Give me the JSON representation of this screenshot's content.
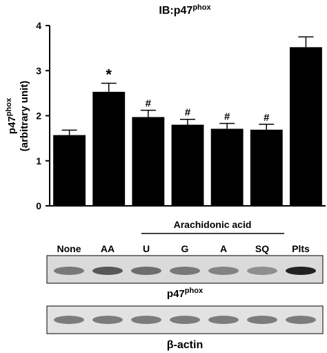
{
  "chart_data": {
    "type": "bar",
    "title": "IB:p47",
    "title_superscript": "phox",
    "y_label": "p47",
    "y_label_superscript": "phox",
    "y_label_unit": "(arbitrary unit)",
    "categories": [
      "None",
      "AA",
      "U",
      "G",
      "A",
      "SQ",
      "Plts"
    ],
    "values": [
      1.57,
      2.53,
      1.97,
      1.8,
      1.71,
      1.69,
      3.52
    ],
    "errors": [
      0.11,
      0.19,
      0.15,
      0.12,
      0.12,
      0.12,
      0.23
    ],
    "markers": [
      null,
      "*",
      "#",
      "#",
      "#",
      "#",
      null
    ],
    "color": "#000000",
    "ylim": [
      0,
      4
    ],
    "yticks": [
      0,
      1,
      2,
      3,
      4
    ],
    "group_label": "Arachidonic acid",
    "blot_label": "p47",
    "blot_label_superscript": "phox",
    "control_label": "β-actin"
  }
}
